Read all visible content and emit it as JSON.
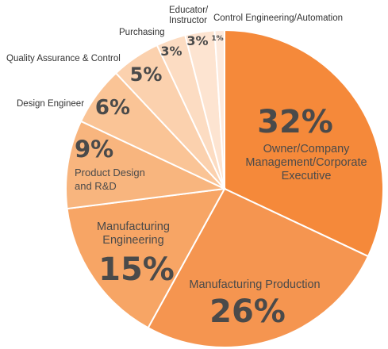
{
  "chart_data": {
    "type": "pie",
    "slices": [
      {
        "label": "Owner/Company Management/Corporate Executive",
        "lines": [
          "Owner/Company",
          "Management/Corporate",
          "Executive"
        ],
        "value": 32,
        "pct_text": "32%",
        "color": "#f5893a"
      },
      {
        "label": "Manufacturing Production",
        "lines": [
          "Manufacturing Production"
        ],
        "value": 26,
        "pct_text": "26%",
        "color": "#f59550"
      },
      {
        "label": "Manufacturing Engineering",
        "lines": [
          "Manufacturing",
          "Engineering"
        ],
        "value": 15,
        "pct_text": "15%",
        "color": "#f7a565"
      },
      {
        "label": "Product Design and R&D",
        "lines": [
          "Product Design",
          "and R&D"
        ],
        "value": 9,
        "pct_text": "9%",
        "color": "#f8b57e"
      },
      {
        "label": "Design Engineer",
        "lines": [
          "Design Engineer"
        ],
        "value": 6,
        "pct_text": "6%",
        "color": "#fac496"
      },
      {
        "label": "Quality Assurance & Control",
        "lines": [
          "Quality Assurance & Control"
        ],
        "value": 5,
        "pct_text": "5%",
        "color": "#fbd1ae"
      },
      {
        "label": "Purchasing",
        "lines": [
          "Purchasing"
        ],
        "value": 3,
        "pct_text": "3%",
        "color": "#fcdcc2"
      },
      {
        "label": "Educator/ Instructor",
        "lines": [
          "Educator/",
          "Instructor"
        ],
        "value": 3,
        "pct_text": "3%",
        "color": "#fde4d1"
      },
      {
        "label": "Control Engineering/Automation",
        "lines": [
          "Control Engineering/Automation"
        ],
        "value": 1,
        "pct_text": "1%",
        "color": "#fdeadd"
      }
    ]
  }
}
